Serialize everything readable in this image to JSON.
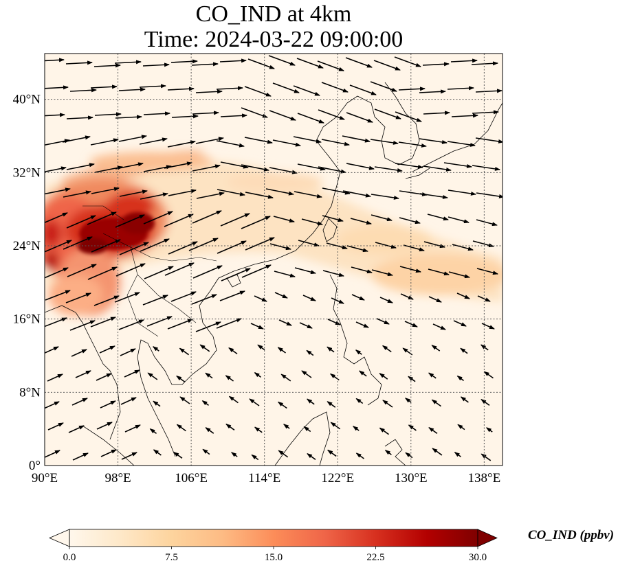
{
  "title": {
    "line1": "CO_IND at 4km",
    "line2": "Time: 2024-03-22 09:00:00"
  },
  "map": {
    "projection": "PlateCarree",
    "lon_range": [
      90,
      140
    ],
    "lat_range": [
      0,
      45
    ],
    "lon_ticks": [
      90,
      98,
      106,
      114,
      122,
      130,
      138
    ],
    "lat_ticks": [
      0,
      8,
      16,
      24,
      32,
      40
    ],
    "lon_tick_labels": [
      "90°E",
      "98°E",
      "106°E",
      "114°E",
      "122°E",
      "130°E",
      "138°E"
    ],
    "lat_tick_labels": [
      "0°",
      "8°N",
      "16°N",
      "24°N",
      "32°N",
      "40°N"
    ],
    "gridlines": "dotted",
    "features": [
      "coastlines",
      "country-borders",
      "wind-vectors"
    ],
    "plume_max_region": "southern China / Yunnan (~24-28°N, 94-104°E)"
  },
  "colorbar": {
    "cmap": "OrRd",
    "vmin": 0,
    "vmax": 30,
    "extend": "both",
    "tick_labels": [
      "0.0",
      "7.5",
      "15.0",
      "22.5",
      "30.0"
    ],
    "label": "CO_IND (ppbv)",
    "colors": [
      "#fff7ec",
      "#fee8c8",
      "#fdd49e",
      "#fdbb84",
      "#fc8d59",
      "#ef6548",
      "#d7301f",
      "#b30000",
      "#7f0000"
    ]
  },
  "axes": {
    "lon_label": "",
    "lat_label": ""
  }
}
